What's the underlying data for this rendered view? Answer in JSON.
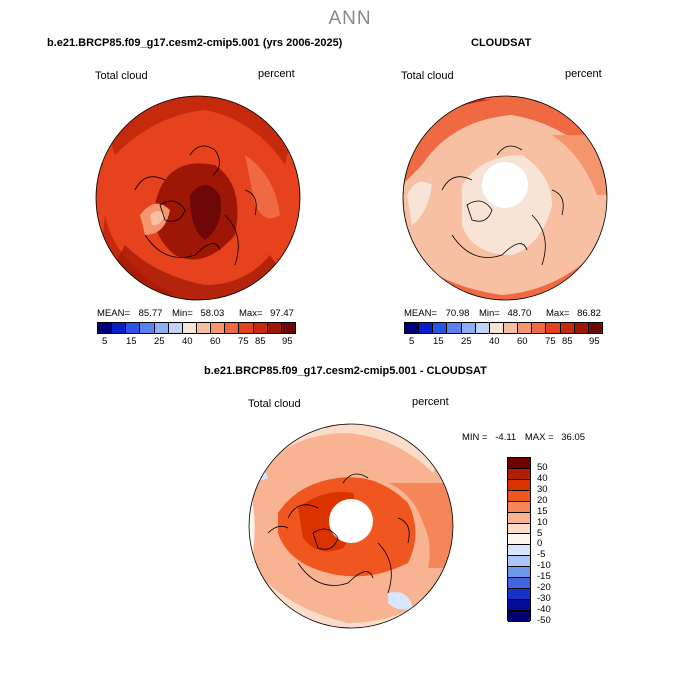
{
  "title": "ANN",
  "palette": {
    "full": [
      "#00007a",
      "#0a1fc9",
      "#2c55e8",
      "#5a82f0",
      "#8daef5",
      "#c1d4f8",
      "#f8e4d6",
      "#f7c0a3",
      "#f4956d",
      "#ef6a43",
      "#e6421d",
      "#c62a0c",
      "#9e1706",
      "#6e0707"
    ],
    "diff": [
      "#6e0000",
      "#b01e00",
      "#db3300",
      "#f0561f",
      "#f4865a",
      "#f7b392",
      "#fbdcc9",
      "#fdf4ec",
      "#d7e6fb",
      "#a9c6f4",
      "#7098ea",
      "#3f64de",
      "#1633c9",
      "#040b94",
      "#000070"
    ]
  },
  "panels": {
    "left": {
      "header": "b.e21.BRCP85.f09_g17.cesm2-cmip5.001 (yrs 2006-2025)",
      "field_label": "Total cloud",
      "units": "percent",
      "mean_label": "MEAN=",
      "mean_value": "85.77",
      "min_label": "Min=",
      "min_value": "58.03",
      "max_label": "Max=",
      "max_value": "97.47",
      "colorbar_ticks": [
        "5",
        "15",
        "25",
        "40",
        "60",
        "75",
        "85",
        "95"
      ]
    },
    "right": {
      "header": "CLOUDSAT",
      "field_label": "Total cloud",
      "units": "percent",
      "mean_label": "MEAN=",
      "mean_value": "70.98",
      "min_label": "Min=",
      "min_value": "48.70",
      "max_label": "Max=",
      "max_value": "86.82",
      "colorbar_ticks": [
        "5",
        "15",
        "25",
        "40",
        "60",
        "75",
        "85",
        "95"
      ]
    },
    "bottom": {
      "header": "b.e21.BRCP85.f09_g17.cesm2-cmip5.001 - CLOUDSAT",
      "field_label": "Total cloud",
      "units": "percent",
      "min_label": "MIN =",
      "min_value": "-4.11",
      "max_label": "MAX =",
      "max_value": "36.05",
      "colorbar_ticks": [
        "50",
        "40",
        "30",
        "20",
        "15",
        "10",
        "5",
        "0",
        "-5",
        "-10",
        "-15",
        "-20",
        "-30",
        "-40",
        "-50"
      ]
    }
  }
}
